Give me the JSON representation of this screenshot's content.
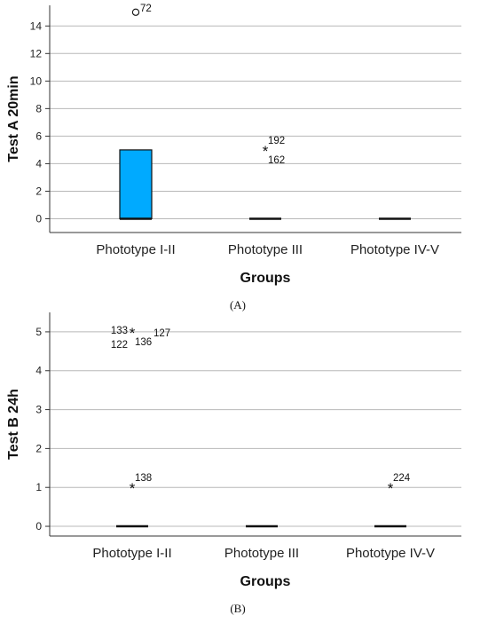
{
  "chart_data": [
    {
      "type": "boxplot",
      "panel_label": "(A)",
      "ylabel": "Test A 20min",
      "xlabel": "Groups",
      "ylim": [
        -1,
        15.5
      ],
      "yticks": [
        0,
        2,
        4,
        6,
        8,
        10,
        12,
        14
      ],
      "grid": "horizontal",
      "categories": [
        "Phototype I-II",
        "Phototype III",
        "Phototype IV-V"
      ],
      "box_color": "#00aaff",
      "boxes": [
        {
          "q1": 0,
          "median": 0,
          "q3": 5,
          "whisker_low": 0,
          "whisker_high": 5
        },
        {
          "q1": 0,
          "median": 0,
          "q3": 0,
          "whisker_low": 0,
          "whisker_high": 0
        },
        {
          "q1": 0,
          "median": 0,
          "q3": 0,
          "whisker_low": 0,
          "whisker_high": 0
        }
      ],
      "outliers": [
        {
          "category": 0,
          "value": 15,
          "marker": "circle",
          "labels": [
            {
              "text": "72",
              "pos": "right"
            }
          ]
        },
        {
          "category": 1,
          "value": 5,
          "marker": "star",
          "labels": [
            {
              "text": "192",
              "pos": "top-right"
            },
            {
              "text": "162",
              "pos": "bottom-right"
            }
          ]
        }
      ]
    },
    {
      "type": "boxplot",
      "panel_label": "(B)",
      "ylabel": "Test B 24h",
      "xlabel": "Groups",
      "ylim": [
        -0.25,
        5.5
      ],
      "yticks": [
        0,
        1,
        2,
        3,
        4,
        5
      ],
      "grid": "horizontal",
      "categories": [
        "Phototype I-II",
        "Phototype III",
        "Phototype IV-V"
      ],
      "box_color": "#00aaff",
      "boxes": [
        {
          "q1": 0,
          "median": 0,
          "q3": 0,
          "whisker_low": 0,
          "whisker_high": 0
        },
        {
          "q1": 0,
          "median": 0,
          "q3": 0,
          "whisker_low": 0,
          "whisker_high": 0
        },
        {
          "q1": 0,
          "median": 0,
          "q3": 0,
          "whisker_low": 0,
          "whisker_high": 0
        }
      ],
      "outliers": [
        {
          "category": 0,
          "value": 5,
          "marker": "star",
          "labels": [
            {
              "text": "133",
              "pos": "top-left"
            },
            {
              "text": "122",
              "pos": "bottom-left"
            },
            {
              "text": "136",
              "pos": "bottom-right"
            },
            {
              "text": "127",
              "pos": "right"
            }
          ]
        },
        {
          "category": 0,
          "value": 1,
          "marker": "star",
          "labels": [
            {
              "text": "138",
              "pos": "top-right"
            }
          ]
        },
        {
          "category": 2,
          "value": 1,
          "marker": "star",
          "labels": [
            {
              "text": "224",
              "pos": "top-right"
            }
          ]
        }
      ]
    }
  ]
}
